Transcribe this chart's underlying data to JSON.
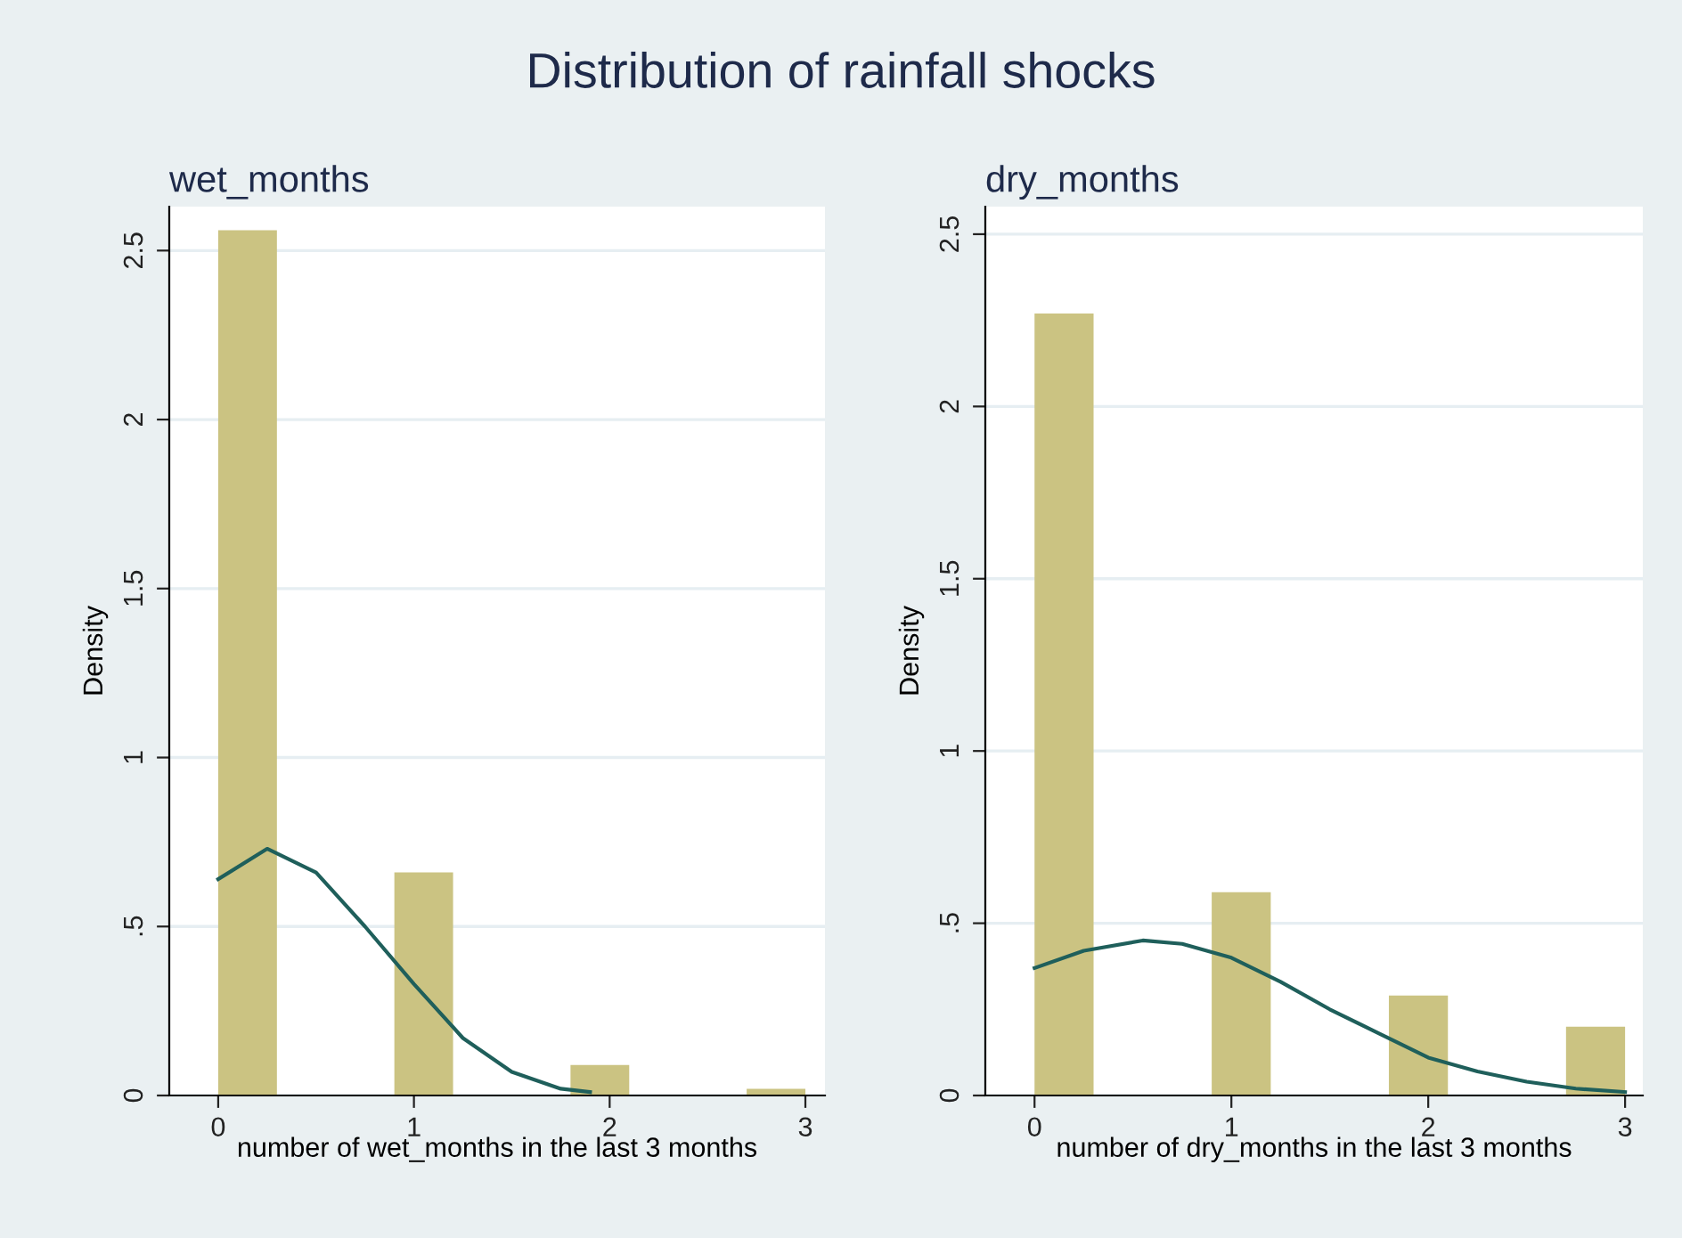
{
  "chart_data": [
    {
      "type": "histogram",
      "title": "wet_months",
      "xlabel": "number of wet_months in the last 3 months",
      "ylabel": "Density",
      "annotations": [
        "Distribution of rainfall shocks"
      ],
      "bins": [
        0,
        0.3,
        0.6,
        0.9,
        1.2,
        1.5,
        1.8,
        2.1,
        2.4,
        2.7,
        3.0
      ],
      "series": [
        {
          "type": "histogram",
          "color": "#cbc382",
          "values": [
            2.56,
            0,
            0,
            0.66,
            0,
            0,
            0.09,
            0,
            0,
            0.02
          ]
        },
        {
          "type": "line",
          "color": "#1f5f5b",
          "x": [
            0,
            0.25,
            0.5,
            0.75,
            1,
            1.25,
            1.5,
            1.75,
            1.9
          ],
          "values": [
            0.64,
            0.73,
            0.66,
            0.5,
            0.33,
            0.17,
            0.07,
            0.02,
            0.01
          ]
        }
      ],
      "xlim": [
        -0.25,
        3.1
      ],
      "ylim": [
        0,
        2.63
      ],
      "xticks": [
        0,
        1,
        2,
        3
      ],
      "yticks": [
        0,
        {
          "value": 0.5,
          "label": ".5"
        },
        1,
        1.5,
        2,
        2.5
      ],
      "grid": "y"
    },
    {
      "type": "histogram",
      "title": "dry_months",
      "xlabel": "number of dry_months in the last 3 months",
      "ylabel": "Density",
      "bins": [
        0,
        0.3,
        0.6,
        0.9,
        1.2,
        1.5,
        1.8,
        2.1,
        2.4,
        2.7,
        3.0
      ],
      "series": [
        {
          "type": "histogram",
          "color": "#cbc382",
          "values": [
            2.27,
            0,
            0,
            0.59,
            0,
            0,
            0.29,
            0,
            0,
            0.2
          ]
        },
        {
          "type": "line",
          "color": "#1f5f5b",
          "x": [
            0,
            0.25,
            0.55,
            0.75,
            1,
            1.25,
            1.5,
            1.75,
            2,
            2.25,
            2.5,
            2.75,
            3
          ],
          "values": [
            0.37,
            0.42,
            0.45,
            0.44,
            0.4,
            0.33,
            0.25,
            0.18,
            0.11,
            0.07,
            0.04,
            0.02,
            0.01
          ]
        }
      ],
      "xlim": [
        -0.25,
        3.09
      ],
      "ylim": [
        0,
        2.58
      ],
      "xticks": [
        0,
        1,
        2,
        3
      ],
      "yticks": [
        0,
        {
          "value": 0.5,
          "label": ".5"
        },
        1,
        1.5,
        2,
        2.5
      ],
      "grid": "y"
    }
  ]
}
